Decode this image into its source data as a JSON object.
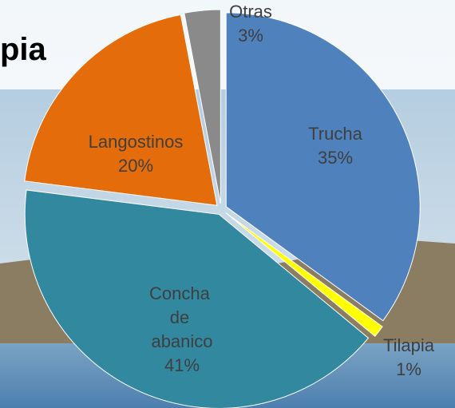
{
  "chart_data": {
    "type": "pie",
    "title": "pia",
    "categories": [
      "Trucha",
      "Tilapia",
      "Concha de abanico",
      "Langostinos",
      "Otras"
    ],
    "values": [
      35,
      1,
      41,
      20,
      3
    ],
    "value_labels": [
      "35%",
      "1%",
      "41%",
      "20%",
      "3%"
    ],
    "colors": [
      "#4f81bd",
      "#ffff00",
      "#31889f",
      "#e46c0a",
      "#8a8a8a"
    ]
  }
}
